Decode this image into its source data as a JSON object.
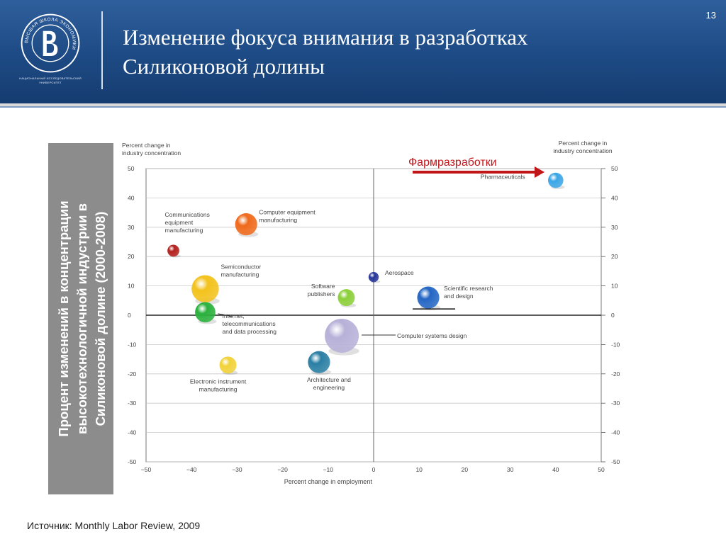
{
  "slide": {
    "number": "13",
    "title_line1": "Изменение фокуса внимания  в  разработках",
    "title_line2": "Силиконовой долины",
    "source": "Источник: Monthly Labor Review, 2009",
    "logo_caption_line1": "НАЦИОНАЛЬНЫЙ ИССЛЕДОВАТЕЛЬСКИЙ",
    "logo_caption_line2": "УНИВЕРСИТЕТ",
    "logo_ring_text": "ВЫСШАЯ ШКОЛА ЭКОНОМИКИ"
  },
  "colors": {
    "header": "#1d4a84",
    "side_band": "#8c8c8c",
    "highlight_arrow": "#c0161a",
    "highlight_text": "#c0161a"
  },
  "chart_data": {
    "type": "scatter",
    "subtype": "bubble",
    "ylabel_left": [
      "Percent change in",
      "industry concentration"
    ],
    "ylabel_right": [
      "Percent change in",
      "industry concentration"
    ],
    "xlabel": "Percent change in employment",
    "side_label": [
      "Процент изменений в концентрации",
      "высокотехнологичной индустрии в",
      "Силиконовой долине (2000-2008)"
    ],
    "xlim": [
      -50,
      50
    ],
    "ylim": [
      -50,
      50
    ],
    "x_ticks": [
      "−50",
      "−40",
      "−30",
      "−20",
      "−10",
      "0",
      "10",
      "20",
      "30",
      "40",
      "50"
    ],
    "y_ticks": [
      "50",
      "40",
      "30",
      "20",
      "10",
      "0",
      "-10",
      "-20",
      "-30",
      "-40",
      "-50"
    ],
    "grid": "horizontal",
    "highlight": {
      "label": "Фармразработки"
    },
    "points": [
      {
        "name": "Pharmaceuticals",
        "x": 40,
        "y": 46,
        "size": 0.9,
        "color": "#3ba6e6",
        "label_lines": [
          "Pharmaceuticals"
        ]
      },
      {
        "name": "Computer equipment manufacturing",
        "x": -28,
        "y": 31,
        "size": 1.3,
        "color": "#ef6a1c",
        "label_lines": [
          "Computer equipment",
          "manufacturing"
        ]
      },
      {
        "name": "Communications equipment manufacturing",
        "x": -44,
        "y": 22,
        "size": 0.7,
        "color": "#b3201c",
        "label_lines": [
          "Communications",
          "equipment",
          "manufacturing"
        ]
      },
      {
        "name": "Semiconductor manufacturing",
        "x": -37,
        "y": 9,
        "size": 1.6,
        "color": "#f3c21c",
        "label_lines": [
          "Semiconductor",
          "manufacturing"
        ]
      },
      {
        "name": "Internet, telecommunications and data processing",
        "x": -37,
        "y": 1,
        "size": 1.2,
        "color": "#2bb13d",
        "label_lines": [
          "Internet,",
          "telecommunications",
          "and data processing"
        ]
      },
      {
        "name": "Aerospace",
        "x": 0,
        "y": 13,
        "size": 0.6,
        "color": "#27379a",
        "label_lines": [
          "Aerospace"
        ]
      },
      {
        "name": "Software publishers",
        "x": -6,
        "y": 6,
        "size": 1.0,
        "color": "#8ccf3a",
        "label_lines": [
          "Software",
          "publishers"
        ]
      },
      {
        "name": "Scientific research and design",
        "x": 12,
        "y": 6,
        "size": 1.3,
        "color": "#2466c4",
        "label_lines": [
          "Scientific research",
          "and design"
        ]
      },
      {
        "name": "Computer systems design",
        "x": -7,
        "y": -7,
        "size": 2.0,
        "color": "#b7b1d8",
        "label_lines": [
          "Computer systems design"
        ]
      },
      {
        "name": "Architecture and engineering",
        "x": -12,
        "y": -16,
        "size": 1.3,
        "color": "#2a7fa4",
        "label_lines": [
          "Architecture and",
          "engineering"
        ]
      },
      {
        "name": "Electronic instrument manufacturing",
        "x": -32,
        "y": -17,
        "size": 1.0,
        "color": "#f1d23a",
        "label_lines": [
          "Electronic instrument",
          "manufacturing"
        ]
      }
    ]
  }
}
